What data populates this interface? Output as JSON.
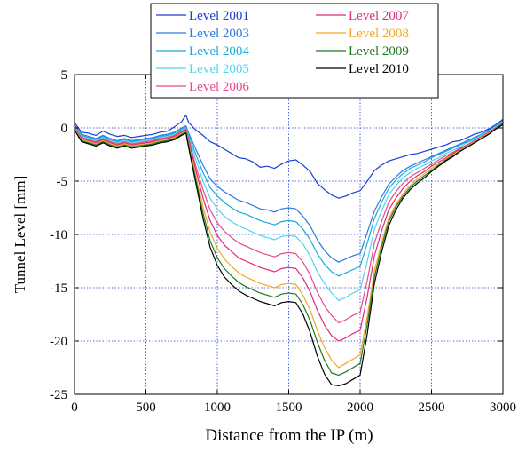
{
  "chart_data": {
    "type": "line",
    "xlabel": "Distance from the IP (m)",
    "ylabel": "Tunnel Level [mm]",
    "xlim": [
      0,
      3000
    ],
    "ylim": [
      -25,
      5
    ],
    "xticks": [
      0,
      500,
      1000,
      1500,
      2000,
      2500,
      3000
    ],
    "yticks": [
      5,
      0,
      -5,
      -10,
      -15,
      -20,
      -25
    ],
    "grid": true,
    "legend_position": "top (above plot, two columns)",
    "x": [
      0,
      50,
      100,
      150,
      200,
      250,
      300,
      350,
      400,
      450,
      500,
      550,
      600,
      650,
      700,
      750,
      780,
      800,
      850,
      900,
      950,
      1000,
      1050,
      1100,
      1150,
      1200,
      1250,
      1300,
      1350,
      1400,
      1450,
      1500,
      1550,
      1600,
      1650,
      1700,
      1750,
      1800,
      1850,
      1900,
      1950,
      2000,
      2050,
      2100,
      2150,
      2200,
      2250,
      2300,
      2350,
      2400,
      2450,
      2500,
      2550,
      2600,
      2650,
      2700,
      2750,
      2800,
      2850,
      2900,
      2950,
      3000
    ],
    "series": [
      {
        "name": "Level 2001",
        "color": "#1a3fd1",
        "values": [
          0.5,
          -0.4,
          -0.5,
          -0.7,
          -0.3,
          -0.6,
          -0.8,
          -0.7,
          -0.9,
          -0.8,
          -0.7,
          -0.6,
          -0.4,
          -0.3,
          0.1,
          0.6,
          1.2,
          0.5,
          -0.2,
          -0.7,
          -1.3,
          -1.6,
          -2.0,
          -2.4,
          -2.8,
          -2.9,
          -3.2,
          -3.7,
          -3.6,
          -3.8,
          -3.4,
          -3.1,
          -3.0,
          -3.5,
          -4.1,
          -5.2,
          -5.8,
          -6.3,
          -6.6,
          -6.4,
          -6.1,
          -5.9,
          -5.0,
          -4.0,
          -3.5,
          -3.1,
          -2.9,
          -2.7,
          -2.5,
          -2.4,
          -2.2,
          -2.0,
          -1.8,
          -1.6,
          -1.3,
          -1.2,
          -0.9,
          -0.6,
          -0.4,
          -0.1,
          0.3,
          0.8
        ]
      },
      {
        "name": "Level 2003",
        "color": "#2b7be0",
        "values": [
          0.3,
          -0.6,
          -0.8,
          -1.0,
          -0.7,
          -1.0,
          -1.2,
          -1.0,
          -1.2,
          -1.1,
          -1.0,
          -0.9,
          -0.7,
          -0.6,
          -0.4,
          0.0,
          0.2,
          -0.5,
          -2.0,
          -3.5,
          -4.8,
          -5.5,
          -6.0,
          -6.4,
          -6.8,
          -7.0,
          -7.3,
          -7.6,
          -7.7,
          -7.9,
          -7.6,
          -7.5,
          -7.6,
          -8.3,
          -9.2,
          -10.5,
          -11.5,
          -12.2,
          -12.6,
          -12.3,
          -12.0,
          -11.8,
          -9.8,
          -7.8,
          -6.5,
          -5.3,
          -4.6,
          -4.0,
          -3.6,
          -3.3,
          -3.0,
          -2.7,
          -2.4,
          -2.1,
          -1.8,
          -1.5,
          -1.2,
          -0.9,
          -0.6,
          -0.2,
          0.2,
          0.7
        ]
      },
      {
        "name": "Level 2004",
        "color": "#1aaad8",
        "values": [
          0.2,
          -0.7,
          -0.9,
          -1.1,
          -0.8,
          -1.1,
          -1.3,
          -1.1,
          -1.3,
          -1.2,
          -1.1,
          -1.0,
          -0.8,
          -0.7,
          -0.5,
          -0.1,
          0.1,
          -0.7,
          -2.5,
          -4.2,
          -5.6,
          -6.4,
          -7.0,
          -7.5,
          -7.9,
          -8.1,
          -8.4,
          -8.7,
          -8.9,
          -9.1,
          -8.8,
          -8.7,
          -8.8,
          -9.5,
          -10.5,
          -11.8,
          -12.8,
          -13.5,
          -13.9,
          -13.6,
          -13.3,
          -13.0,
          -10.8,
          -8.5,
          -7.0,
          -5.7,
          -4.9,
          -4.3,
          -3.8,
          -3.5,
          -3.2,
          -2.8,
          -2.5,
          -2.2,
          -1.9,
          -1.6,
          -1.3,
          -1.0,
          -0.6,
          -0.3,
          0.2,
          0.6
        ]
      },
      {
        "name": "Level 2005",
        "color": "#4fd5ee",
        "values": [
          0.1,
          -0.8,
          -1.0,
          -1.2,
          -0.9,
          -1.2,
          -1.4,
          -1.2,
          -1.4,
          -1.3,
          -1.2,
          -1.1,
          -0.9,
          -0.8,
          -0.6,
          -0.2,
          0.0,
          -0.9,
          -3.0,
          -5.0,
          -6.6,
          -7.6,
          -8.3,
          -8.8,
          -9.2,
          -9.5,
          -9.8,
          -10.1,
          -10.3,
          -10.5,
          -10.2,
          -10.1,
          -10.2,
          -10.9,
          -12.0,
          -13.5,
          -14.6,
          -15.5,
          -16.2,
          -15.9,
          -15.5,
          -15.2,
          -12.5,
          -9.5,
          -7.8,
          -6.3,
          -5.4,
          -4.7,
          -4.2,
          -3.8,
          -3.5,
          -3.1,
          -2.8,
          -2.4,
          -2.1,
          -1.8,
          -1.4,
          -1.1,
          -0.7,
          -0.3,
          0.1,
          0.6
        ]
      },
      {
        "name": "Level 2006",
        "color": "#e64a8f",
        "values": [
          0.0,
          -0.9,
          -1.1,
          -1.3,
          -1.0,
          -1.3,
          -1.5,
          -1.3,
          -1.5,
          -1.4,
          -1.3,
          -1.2,
          -1.0,
          -0.9,
          -0.7,
          -0.3,
          -0.1,
          -1.1,
          -3.6,
          -5.8,
          -7.7,
          -8.9,
          -9.7,
          -10.3,
          -10.8,
          -11.1,
          -11.4,
          -11.7,
          -11.9,
          -12.1,
          -11.8,
          -11.7,
          -11.8,
          -12.6,
          -13.8,
          -15.4,
          -16.7,
          -17.6,
          -18.3,
          -18.0,
          -17.6,
          -17.3,
          -14.3,
          -10.8,
          -8.8,
          -7.0,
          -6.0,
          -5.2,
          -4.6,
          -4.2,
          -3.8,
          -3.4,
          -3.0,
          -2.6,
          -2.3,
          -1.9,
          -1.6,
          -1.2,
          -0.8,
          -0.4,
          0.0,
          0.5
        ]
      },
      {
        "name": "Level 2007",
        "color": "#dd2a7d",
        "values": [
          0.0,
          -1.0,
          -1.2,
          -1.4,
          -1.1,
          -1.4,
          -1.6,
          -1.4,
          -1.6,
          -1.5,
          -1.4,
          -1.3,
          -1.1,
          -1.0,
          -0.8,
          -0.4,
          -0.2,
          -1.3,
          -4.0,
          -6.6,
          -8.7,
          -10.1,
          -11.0,
          -11.6,
          -12.2,
          -12.5,
          -12.8,
          -13.1,
          -13.3,
          -13.5,
          -13.2,
          -13.1,
          -13.2,
          -14.1,
          -15.4,
          -17.1,
          -18.5,
          -19.5,
          -20.0,
          -19.7,
          -19.3,
          -19.0,
          -15.8,
          -12.0,
          -9.7,
          -7.7,
          -6.6,
          -5.7,
          -5.0,
          -4.5,
          -4.1,
          -3.6,
          -3.2,
          -2.8,
          -2.4,
          -2.0,
          -1.6,
          -1.3,
          -0.9,
          -0.5,
          0.0,
          0.4
        ]
      },
      {
        "name": "Level 2008",
        "color": "#f5a623",
        "values": [
          -0.1,
          -1.1,
          -1.3,
          -1.5,
          -1.2,
          -1.5,
          -1.7,
          -1.5,
          -1.7,
          -1.6,
          -1.5,
          -1.4,
          -1.2,
          -1.1,
          -0.9,
          -0.5,
          -0.3,
          -1.5,
          -4.5,
          -7.4,
          -9.8,
          -11.3,
          -12.3,
          -13.0,
          -13.6,
          -14.0,
          -14.3,
          -14.6,
          -14.8,
          -15.0,
          -14.7,
          -14.6,
          -14.7,
          -15.7,
          -17.1,
          -19.0,
          -20.6,
          -21.8,
          -22.5,
          -22.1,
          -21.7,
          -21.3,
          -17.7,
          -13.4,
          -10.8,
          -8.5,
          -7.2,
          -6.2,
          -5.4,
          -4.8,
          -4.3,
          -3.8,
          -3.4,
          -2.9,
          -2.5,
          -2.1,
          -1.7,
          -1.3,
          -0.9,
          -0.5,
          -0.1,
          0.4
        ]
      },
      {
        "name": "Level 2009",
        "color": "#1e7a1e",
        "values": [
          -0.2,
          -1.2,
          -1.4,
          -1.6,
          -1.3,
          -1.6,
          -1.8,
          -1.6,
          -1.8,
          -1.7,
          -1.6,
          -1.5,
          -1.3,
          -1.2,
          -1.0,
          -0.6,
          -0.4,
          -1.7,
          -4.9,
          -8.0,
          -10.6,
          -12.2,
          -13.2,
          -13.9,
          -14.5,
          -14.9,
          -15.2,
          -15.5,
          -15.7,
          -15.9,
          -15.6,
          -15.5,
          -15.6,
          -16.6,
          -18.1,
          -20.1,
          -21.8,
          -23.0,
          -23.2,
          -22.9,
          -22.5,
          -22.1,
          -18.4,
          -14.0,
          -11.2,
          -8.8,
          -7.4,
          -6.4,
          -5.6,
          -5.0,
          -4.5,
          -4.0,
          -3.5,
          -3.0,
          -2.6,
          -2.2,
          -1.8,
          -1.4,
          -1.0,
          -0.6,
          -0.1,
          0.4
        ]
      },
      {
        "name": "Level 2010",
        "color": "#000000",
        "values": [
          -0.2,
          -1.3,
          -1.5,
          -1.7,
          -1.4,
          -1.7,
          -1.9,
          -1.7,
          -1.9,
          -1.8,
          -1.7,
          -1.6,
          -1.4,
          -1.3,
          -1.1,
          -0.7,
          -0.5,
          -1.9,
          -5.2,
          -8.5,
          -11.2,
          -12.9,
          -14.0,
          -14.7,
          -15.3,
          -15.7,
          -16.0,
          -16.3,
          -16.5,
          -16.7,
          -16.4,
          -16.3,
          -16.4,
          -17.5,
          -19.2,
          -21.4,
          -23.1,
          -24.1,
          -24.2,
          -24.0,
          -23.6,
          -23.2,
          -19.3,
          -14.6,
          -11.7,
          -9.2,
          -7.7,
          -6.6,
          -5.8,
          -5.2,
          -4.7,
          -4.1,
          -3.6,
          -3.1,
          -2.7,
          -2.2,
          -1.8,
          -1.4,
          -1.0,
          -0.6,
          -0.1,
          0.3
        ]
      }
    ]
  }
}
